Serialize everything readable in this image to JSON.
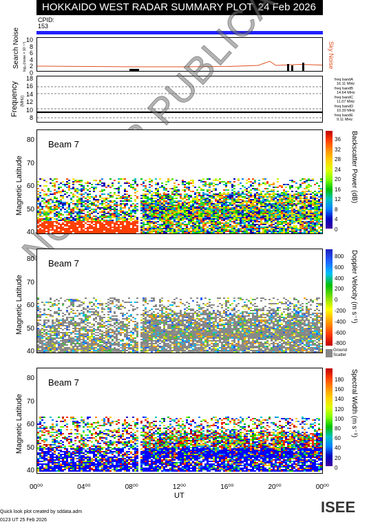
{
  "header": {
    "title": "HOKKAIDO WEST RADAR SUMMARY PLOT",
    "date": "24 Feb 2026"
  },
  "cpid": {
    "label": "CPID:",
    "value": "153"
  },
  "search_noise": {
    "ylabel": "Search Noise",
    "yunit": "log₁₀(noise × 10⁻¹⁰)",
    "yticks": [
      "10",
      "8",
      "6",
      "4",
      "2",
      "0"
    ],
    "right_label": "Sky Noise"
  },
  "frequency": {
    "ylabel": "Frequency",
    "yunit": "(MHz)",
    "yticks": [
      "18",
      "16",
      "14",
      "12",
      "10",
      "8"
    ],
    "bands": [
      {
        "name": "freq bandA",
        "value": "16.11 MHz"
      },
      {
        "name": "freq bandB",
        "value": "14.64 MHz"
      },
      {
        "name": "freq bandC",
        "value": "11.07 MHz"
      },
      {
        "name": "freq bandD",
        "value": "10.30 MHz"
      },
      {
        "name": "freq bandE",
        "value": "9.11 MHz"
      }
    ]
  },
  "panels": [
    {
      "beam": "Beam  7",
      "ylabel": "Magnetic Latitude",
      "yticks": [
        "80",
        "70",
        "60",
        "50",
        "40"
      ],
      "cbar_label": "Backscatter Power (dB)",
      "cbar_ticks": [
        "36",
        "32",
        "28",
        "24",
        "20",
        "16",
        "12",
        "8",
        "4",
        "0"
      ]
    },
    {
      "beam": "Beam  7",
      "ylabel": "Magnetic Latitude",
      "yticks": [
        "80",
        "70",
        "60",
        "50",
        "40"
      ],
      "cbar_label": "Doppler Velocity (m s⁻¹)",
      "cbar_ticks": [
        "800",
        "600",
        "400",
        "200",
        "0",
        "-200",
        "-400",
        "-600",
        "-800"
      ],
      "ground_label": "Ground",
      "scatter_label": "Scatter"
    },
    {
      "beam": "Beam  7",
      "ylabel": "Magnetic Latitude",
      "yticks": [
        "80",
        "70",
        "60",
        "50",
        "40"
      ],
      "cbar_label": "Spectral Width (m s⁻¹)",
      "cbar_ticks": [
        "180",
        "160",
        "140",
        "120",
        "100",
        "80",
        "60",
        "40",
        "20",
        "0"
      ]
    }
  ],
  "xaxis": {
    "label": "UT",
    "ticks": [
      "00⁰⁰",
      "04⁰⁰",
      "08⁰⁰",
      "12⁰⁰",
      "16⁰⁰",
      "20⁰⁰",
      "00⁰⁰"
    ]
  },
  "footer": {
    "credit": "Quick look plot created by sddata.adm",
    "created": "0123 UT 25 Feb 2026"
  },
  "watermark": "NOT FOR PUBLICATION",
  "logo": "ISEE",
  "chart_data": [
    {
      "type": "line",
      "title": "Search Noise",
      "x_range": [
        0,
        24
      ],
      "ylim": [
        0,
        10
      ],
      "series": [
        {
          "name": "Sky Noise",
          "x": [
            0,
            4,
            8,
            12,
            16,
            18.5,
            19.5,
            20,
            22,
            24
          ],
          "values": [
            1.8,
            1.7,
            1.6,
            1.6,
            1.7,
            2.0,
            3.2,
            2.0,
            2.3,
            2.1
          ]
        }
      ]
    },
    {
      "type": "scatter",
      "title": "Frequency",
      "x_range": [
        0,
        24
      ],
      "ylim": [
        8,
        18
      ],
      "series": [
        {
          "name": "freq bandD",
          "x": [
            0,
            24
          ],
          "values": [
            10.3,
            10.3
          ]
        }
      ]
    },
    {
      "type": "heatmap",
      "title": "Backscatter Power (dB)",
      "x_range": [
        0,
        24
      ],
      "ylim": [
        35,
        85
      ],
      "zlim": [
        0,
        36
      ]
    },
    {
      "type": "heatmap",
      "title": "Doppler Velocity",
      "x_range": [
        0,
        24
      ],
      "ylim": [
        35,
        85
      ],
      "zlim": [
        -800,
        800
      ]
    },
    {
      "type": "heatmap",
      "title": "Spectral Width",
      "x_range": [
        0,
        24
      ],
      "ylim": [
        35,
        85
      ],
      "zlim": [
        0,
        180
      ]
    }
  ]
}
